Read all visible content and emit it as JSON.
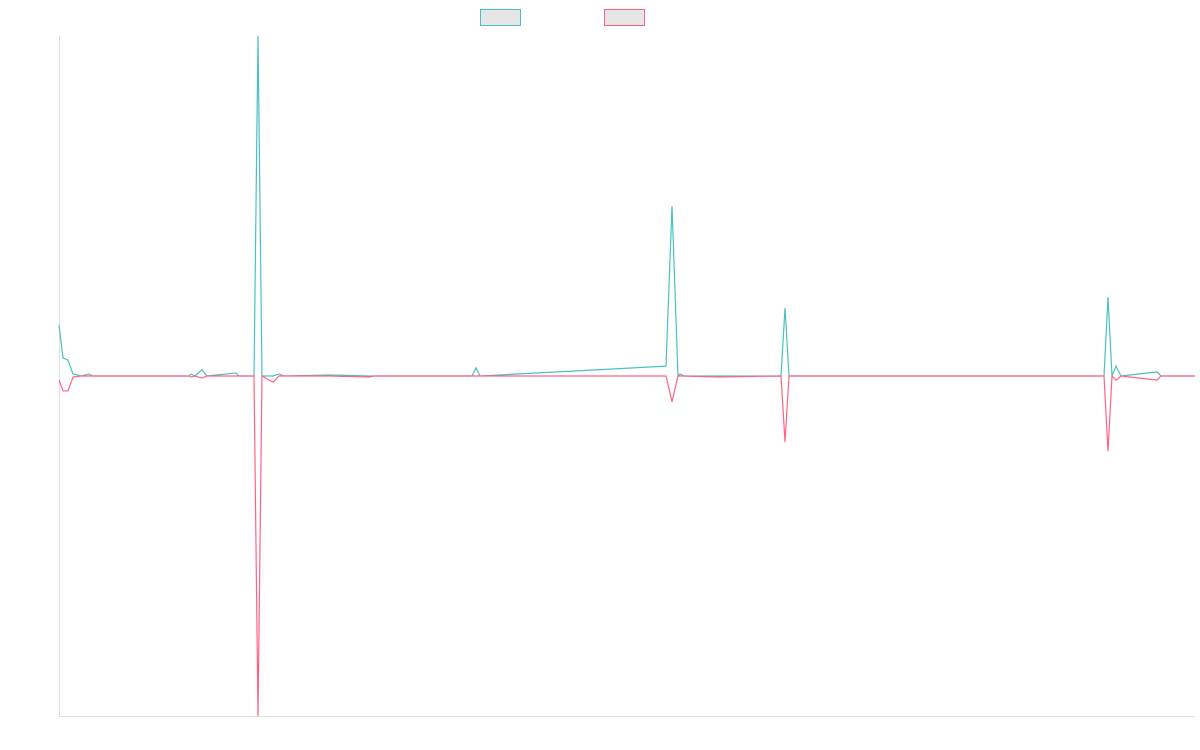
{
  "chart_data": {
    "type": "line",
    "x": [
      0,
      4,
      9,
      14,
      22,
      30,
      34,
      130,
      132,
      136,
      143,
      148,
      177,
      180,
      195,
      199,
      203,
      214,
      220,
      225,
      270,
      310,
      315,
      413,
      417,
      421,
      607,
      613,
      619,
      621,
      625,
      658,
      722,
      726,
      730,
      1045,
      1049,
      1053,
      1057,
      1062,
      1098,
      1102,
      1136
    ],
    "series": [
      {
        "color": "#4bc0c0",
        "values": [
          15,
          5.3,
          4.7,
          0.6,
          0,
          0.6,
          0,
          0,
          0.6,
          0,
          1.8,
          0,
          0.9,
          0,
          0,
          100,
          0,
          0,
          0.6,
          0,
          0.3,
          0,
          0,
          0,
          2.4,
          0,
          2.9,
          50,
          0,
          0.6,
          0,
          0,
          0,
          20,
          0,
          0,
          23.2,
          0,
          2.9,
          0,
          1.2,
          0,
          0
        ]
      },
      {
        "color": "#ff6384",
        "values": [
          -1.2,
          -4.4,
          -4.4,
          -0.3,
          0,
          0,
          0,
          0,
          -0.3,
          0,
          -0.6,
          0,
          0,
          0,
          0,
          -100,
          0,
          -1.8,
          0,
          0,
          0,
          -0.3,
          0,
          0,
          0,
          0,
          0,
          -7.6,
          0,
          0,
          0,
          -0.3,
          0,
          -19.4,
          0,
          0,
          -22.1,
          0,
          -1.2,
          0,
          -1.2,
          0,
          0
        ]
      }
    ],
    "xlim": [
      0,
      1136
    ],
    "ylim": [
      -100,
      100
    ]
  }
}
